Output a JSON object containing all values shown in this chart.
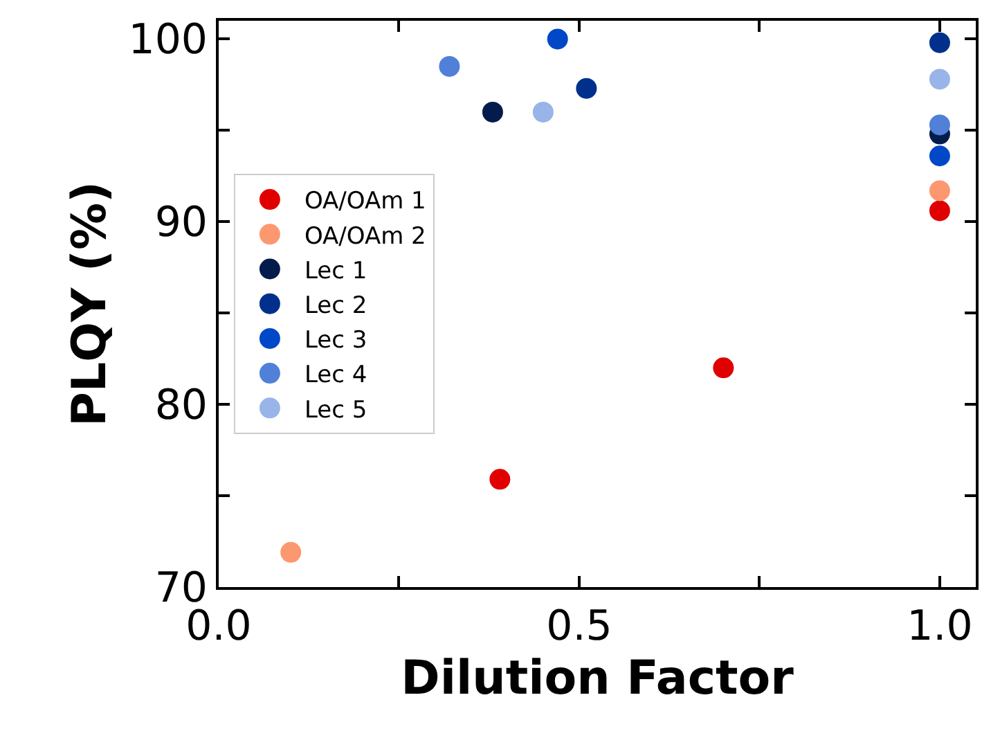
{
  "chart_data": {
    "type": "scatter",
    "xlabel": "Dilution Factor",
    "ylabel": "PLQY (%)",
    "xlim": [
      0,
      1.05
    ],
    "xticks": [
      {
        "value": 0,
        "label": "0.0"
      },
      {
        "value": 0.25,
        "label": null
      },
      0.5,
      {
        "value": 0.75,
        "label": null
      },
      {
        "value": 1,
        "label": "1.0"
      }
    ],
    "ylim": [
      70,
      101
    ],
    "yticks": [
      70,
      {
        "value": 75,
        "label": null
      },
      80,
      {
        "value": 85,
        "label": null
      },
      90,
      {
        "value": 95,
        "label": null
      },
      100
    ],
    "grid": false,
    "legend": "left",
    "marker": "circle",
    "series": [
      {
        "name": "OA/OAm 1",
        "color": "#e00000",
        "x": [
          0.39,
          0.7,
          1
        ],
        "values": [
          75.9,
          82.0,
          90.6
        ]
      },
      {
        "name": "OA/OAm 2",
        "color": "#fc9870",
        "x": [
          0.1,
          1
        ],
        "values": [
          71.9,
          91.7
        ]
      },
      {
        "name": "Lec 1",
        "color": "#041c4c",
        "x": [
          0.38,
          1
        ],
        "values": [
          96.0,
          94.8
        ]
      },
      {
        "name": "Lec 2",
        "color": "#00308c",
        "x": [
          0.51,
          1
        ],
        "values": [
          97.3,
          99.8
        ]
      },
      {
        "name": "Lec 3",
        "color": "#0048c8",
        "x": [
          0.47,
          1
        ],
        "values": [
          100.0,
          93.6
        ]
      },
      {
        "name": "Lec 4",
        "color": "#5080d8",
        "x": [
          0.32,
          1
        ],
        "values": [
          98.5,
          95.3
        ]
      },
      {
        "name": "Lec 5",
        "color": "#98b4e8",
        "x": [
          0.45,
          1
        ],
        "values": [
          96.0,
          97.8
        ]
      }
    ]
  }
}
